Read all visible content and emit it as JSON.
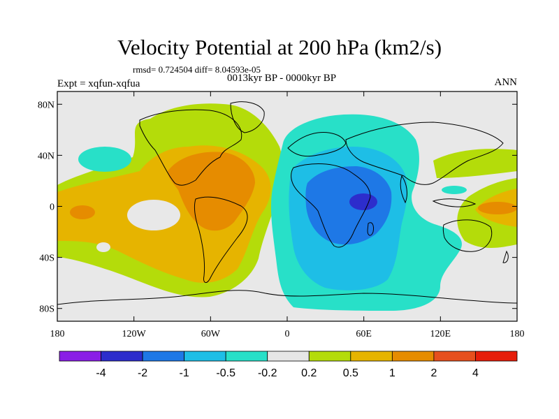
{
  "title": "Velocity Potential at 200 hPa (km2/s)",
  "stats": "rmsd= 0.724504 diff= 8.04593e-05",
  "experiment": "Expt = xqfun-xqfua",
  "period": "0013kyr BP - 0000kyr BP",
  "season": "ANN",
  "map": {
    "lon_range": [
      -180,
      180
    ],
    "lat_range": [
      -90,
      90
    ],
    "lat_ticks": [
      {
        "label": "80N",
        "lat": 80
      },
      {
        "label": "40N",
        "lat": 40
      },
      {
        "label": "0",
        "lat": 0
      },
      {
        "label": "40S",
        "lat": -40
      },
      {
        "label": "80S",
        "lat": -80
      }
    ],
    "lon_ticks": [
      {
        "label": "180",
        "lon": -180
      },
      {
        "label": "120W",
        "lon": -120
      },
      {
        "label": "60W",
        "lon": -60
      },
      {
        "label": "0",
        "lon": 0
      },
      {
        "label": "60E",
        "lon": 60
      },
      {
        "label": "120E",
        "lon": 120
      },
      {
        "label": "180",
        "lon": 180
      }
    ]
  },
  "colorbar": {
    "colors": [
      "#8a1ee6",
      "#2d2dcc",
      "#1e78e6",
      "#1ebee6",
      "#28e0c8",
      "#e6e6e6",
      "#b4dc0a",
      "#e6b400",
      "#e68c00",
      "#e6501e",
      "#e61e0a"
    ],
    "labels": [
      "-4",
      "-2",
      "-1",
      "-0.5",
      "-0.2",
      "0.2",
      "0.5",
      "1",
      "2",
      "4"
    ]
  },
  "fill_colors": {
    "background": "#e8e8e8",
    "neg_light": "#28e0c8",
    "neg_mid": "#1ebee6",
    "neg_strong": "#1e78e6",
    "neg_max": "#2d2dcc",
    "pos_light": "#b4dc0a",
    "pos_mid": "#e6b400",
    "pos_strong": "#e68c00",
    "pos_max": "#e6501e"
  }
}
